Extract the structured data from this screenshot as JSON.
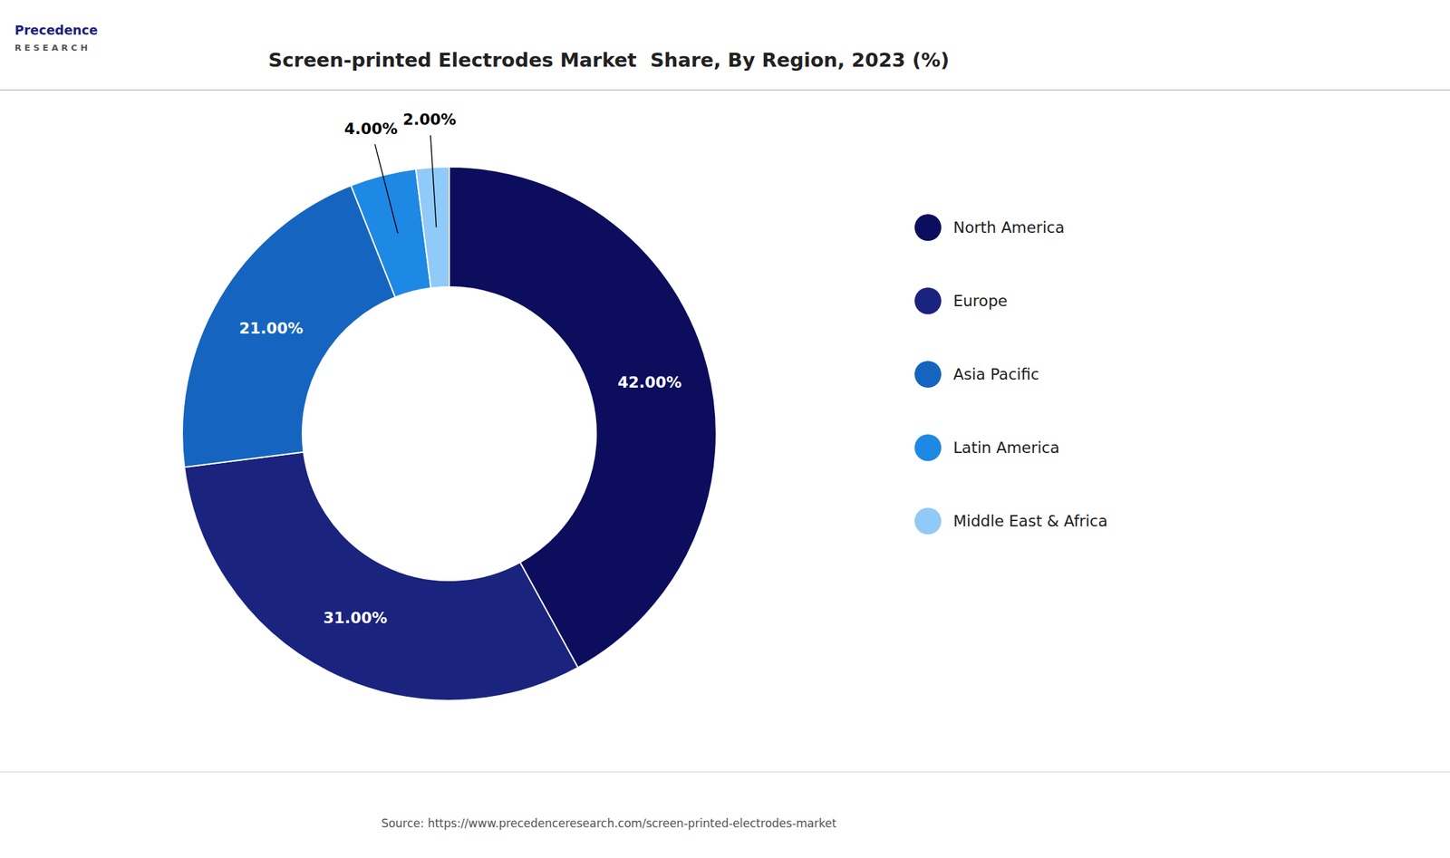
{
  "chart_data": {
    "type": "donut",
    "title": "Screen-printed Electrodes Market  Share, By Region, 2023 (%)",
    "categories": [
      "North America",
      "Europe",
      "Asia Pacific",
      "Latin America",
      "Middle East & Africa"
    ],
    "values": [
      42.0,
      31.0,
      21.0,
      4.0,
      2.0
    ],
    "value_labels": [
      "42.00%",
      "31.00%",
      "21.00%",
      "4.00%",
      "2.00%"
    ],
    "colors": [
      "#0d0d5e",
      "#1a237e",
      "#1565c0",
      "#1e88e5",
      "#90caf9"
    ],
    "data_labels": true,
    "legend": "right",
    "annotations": [
      "Precedence",
      "R E S E A R C H",
      "Source: https://www.precedenceresearch.com/screen-printed-electrodes-market"
    ]
  }
}
